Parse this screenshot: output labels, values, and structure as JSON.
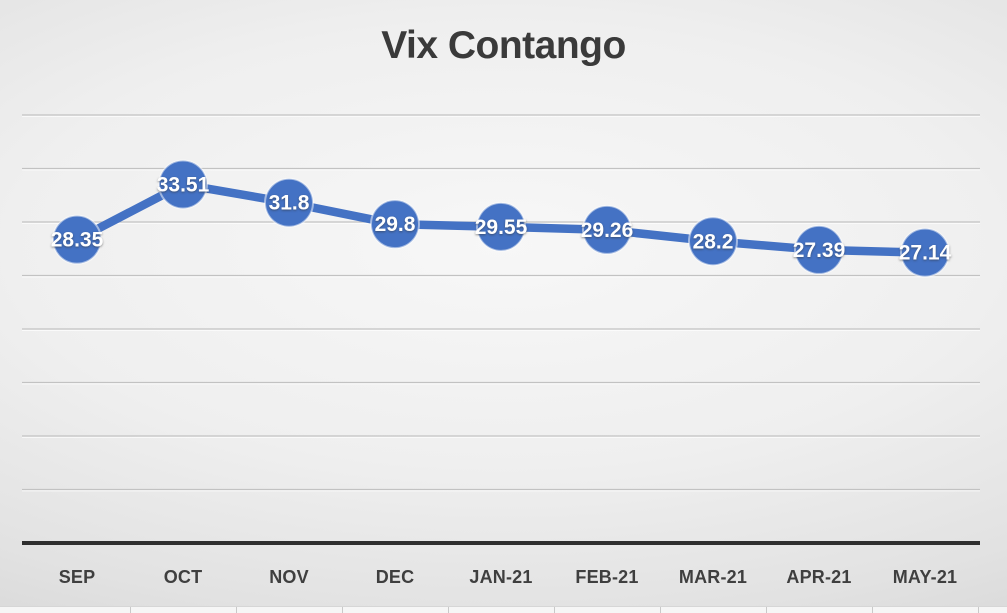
{
  "chart_data": {
    "type": "line",
    "title": "Vix Contango",
    "categories": [
      "SEP",
      "OCT",
      "NOV",
      "DEC",
      "JAN-21",
      "FEB-21",
      "MAR-21",
      "APR-21",
      "MAY-21"
    ],
    "values": [
      28.35,
      33.51,
      31.8,
      29.8,
      29.55,
      29.26,
      28.2,
      27.39,
      27.14
    ],
    "data_labels": [
      "28.35",
      "33.51",
      "31.8",
      "29.8",
      "29.55",
      "29.26",
      "28.2",
      "27.39",
      "27.14"
    ],
    "xlabel": "",
    "ylabel": "",
    "ylim": [
      0,
      40
    ],
    "grid_step": 5,
    "grid": true,
    "legend": "none",
    "y_axis_labels_visible": false,
    "colors": {
      "line": "#4472c4",
      "marker": "#4472c4",
      "marker_halo": "rgba(255,255,255,0.5)",
      "label_text": "#ffffff",
      "axis": "#2f2f2f",
      "gridline": "#c2c2c2",
      "title_text": "#3a3a3a",
      "tick_text": "#3f3f3f"
    }
  }
}
